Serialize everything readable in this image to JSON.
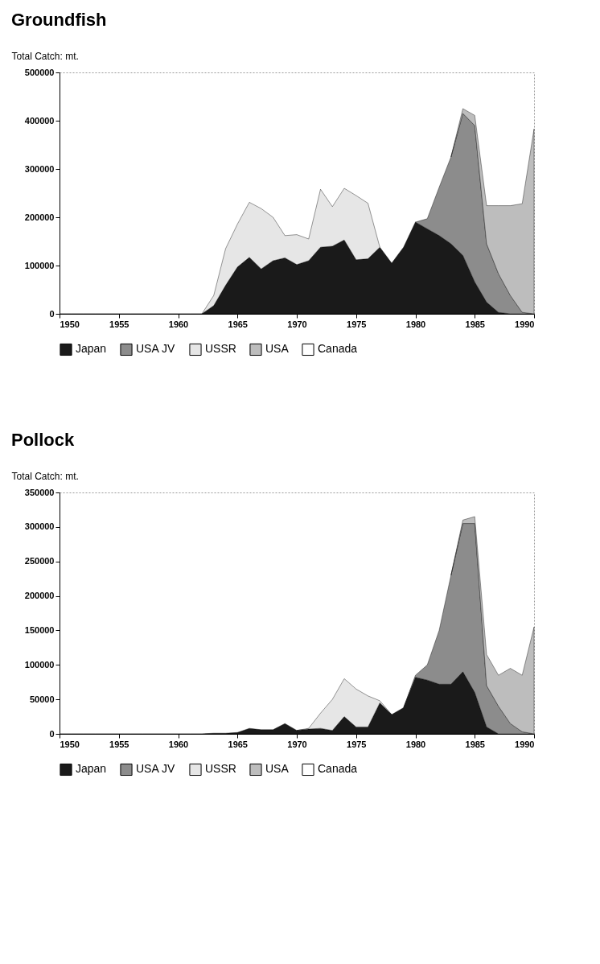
{
  "chart_data": [
    {
      "type": "area",
      "title": "Groundfish",
      "ylabel": "Total Catch: mt.",
      "stacked": true,
      "grid": false,
      "legend": "bottom",
      "x": [
        1950,
        1951,
        1952,
        1953,
        1954,
        1955,
        1956,
        1957,
        1958,
        1959,
        1960,
        1961,
        1962,
        1963,
        1964,
        1965,
        1966,
        1967,
        1968,
        1969,
        1970,
        1971,
        1972,
        1973,
        1974,
        1975,
        1976,
        1977,
        1978,
        1979,
        1980,
        1981,
        1982,
        1983,
        1984,
        1985,
        1986,
        1987,
        1988,
        1989,
        1990
      ],
      "xlim": [
        1950,
        1990
      ],
      "xticks": [
        1950,
        1955,
        1960,
        1965,
        1970,
        1975,
        1980,
        1985,
        1990
      ],
      "ylim": [
        0,
        500000
      ],
      "yticks": [
        0,
        100000,
        200000,
        300000,
        400000,
        500000
      ],
      "series": [
        {
          "name": "Japan",
          "color": "#1a1a1a",
          "values": [
            0,
            0,
            0,
            0,
            0,
            0,
            0,
            0,
            0,
            0,
            0,
            0,
            0,
            17000,
            59000,
            97000,
            117000,
            93000,
            110000,
            116000,
            102000,
            110000,
            138000,
            140000,
            153000,
            112000,
            114000,
            138000,
            105000,
            138000,
            190000,
            176000,
            162000,
            145000,
            121000,
            66000,
            24000,
            3000,
            0,
            0,
            0
          ]
        },
        {
          "name": "USA JV",
          "color": "#8c8c8c",
          "values": [
            null,
            null,
            null,
            null,
            null,
            null,
            null,
            null,
            null,
            null,
            null,
            null,
            null,
            null,
            null,
            null,
            null,
            null,
            null,
            null,
            null,
            null,
            null,
            null,
            null,
            null,
            null,
            null,
            null,
            null,
            0,
            21000,
            100000,
            180000,
            294000,
            324000,
            121000,
            80000,
            38000,
            3000,
            0
          ]
        },
        {
          "name": "USSR",
          "color": "#e6e6e6",
          "values": [
            null,
            null,
            null,
            null,
            null,
            null,
            null,
            null,
            null,
            null,
            null,
            null,
            0,
            21000,
            76000,
            89000,
            114000,
            125000,
            90000,
            46000,
            62000,
            45000,
            120000,
            82000,
            107000,
            133000,
            115000,
            0,
            null,
            null,
            null,
            null,
            null,
            null,
            null,
            null,
            null,
            null,
            null,
            null,
            null
          ]
        },
        {
          "name": "USA",
          "color": "#bdbdbd",
          "values": [
            null,
            null,
            null,
            null,
            null,
            null,
            null,
            null,
            null,
            null,
            null,
            null,
            null,
            null,
            null,
            null,
            null,
            null,
            null,
            null,
            null,
            null,
            null,
            null,
            null,
            null,
            null,
            null,
            null,
            null,
            null,
            null,
            null,
            0,
            10000,
            21000,
            79000,
            141000,
            186000,
            225000,
            383000
          ]
        },
        {
          "name": "Canada",
          "color": "#ffffff",
          "values": [
            null,
            null,
            null,
            null,
            null,
            null,
            null,
            null,
            null,
            null,
            null,
            null,
            null,
            null,
            null,
            null,
            null,
            null,
            null,
            null,
            null,
            null,
            null,
            null,
            null,
            null,
            null,
            null,
            null,
            null,
            null,
            null,
            null,
            null,
            null,
            null,
            null,
            null,
            null,
            null,
            null
          ]
        }
      ]
    },
    {
      "type": "area",
      "title": "Pollock",
      "ylabel": "Total Catch: mt.",
      "stacked": true,
      "grid": false,
      "legend": "bottom",
      "x": [
        1950,
        1951,
        1952,
        1953,
        1954,
        1955,
        1956,
        1957,
        1958,
        1959,
        1960,
        1961,
        1962,
        1963,
        1964,
        1965,
        1966,
        1967,
        1968,
        1969,
        1970,
        1971,
        1972,
        1973,
        1974,
        1975,
        1976,
        1977,
        1978,
        1979,
        1980,
        1981,
        1982,
        1983,
        1984,
        1985,
        1986,
        1987,
        1988,
        1989,
        1990
      ],
      "xlim": [
        1950,
        1990
      ],
      "xticks": [
        1950,
        1955,
        1960,
        1965,
        1970,
        1975,
        1980,
        1985,
        1990
      ],
      "ylim": [
        0,
        350000
      ],
      "yticks": [
        0,
        50000,
        100000,
        150000,
        200000,
        250000,
        300000,
        350000
      ],
      "series": [
        {
          "name": "Japan",
          "color": "#1a1a1a",
          "values": [
            0,
            0,
            0,
            0,
            0,
            0,
            0,
            0,
            0,
            0,
            0,
            0,
            0,
            1000,
            1000,
            2000,
            8000,
            6000,
            6000,
            15000,
            5000,
            7000,
            8000,
            5000,
            25000,
            10000,
            10000,
            45000,
            28000,
            38000,
            82000,
            78000,
            72000,
            72000,
            90000,
            60000,
            10000,
            0,
            0,
            0,
            0
          ]
        },
        {
          "name": "USA JV",
          "color": "#8c8c8c",
          "values": [
            null,
            null,
            null,
            null,
            null,
            null,
            null,
            null,
            null,
            null,
            null,
            null,
            null,
            null,
            null,
            null,
            null,
            null,
            null,
            null,
            null,
            null,
            null,
            null,
            null,
            null,
            null,
            null,
            null,
            0,
            3000,
            22000,
            78000,
            158000,
            215000,
            245000,
            60000,
            40000,
            15000,
            3000,
            0
          ]
        },
        {
          "name": "USSR",
          "color": "#e6e6e6",
          "values": [
            null,
            null,
            null,
            null,
            null,
            null,
            null,
            null,
            null,
            null,
            null,
            null,
            null,
            null,
            null,
            null,
            null,
            null,
            null,
            null,
            0,
            1000,
            22000,
            45000,
            55000,
            55000,
            45000,
            3000,
            0,
            null,
            null,
            null,
            null,
            null,
            null,
            null,
            null,
            null,
            null,
            null,
            null
          ]
        },
        {
          "name": "USA",
          "color": "#bdbdbd",
          "values": [
            null,
            null,
            null,
            null,
            null,
            null,
            null,
            null,
            null,
            null,
            null,
            null,
            null,
            null,
            null,
            null,
            null,
            null,
            null,
            null,
            null,
            null,
            null,
            null,
            null,
            null,
            null,
            null,
            null,
            null,
            null,
            null,
            null,
            0,
            5000,
            10000,
            45000,
            45000,
            80000,
            82000,
            155000
          ]
        },
        {
          "name": "Canada",
          "color": "#ffffff",
          "values": [
            null,
            null,
            null,
            null,
            null,
            null,
            null,
            null,
            null,
            null,
            null,
            null,
            null,
            null,
            null,
            null,
            null,
            null,
            null,
            null,
            null,
            null,
            null,
            null,
            null,
            null,
            null,
            null,
            null,
            null,
            null,
            null,
            null,
            null,
            null,
            null,
            null,
            null,
            null,
            null,
            null
          ]
        }
      ]
    }
  ]
}
